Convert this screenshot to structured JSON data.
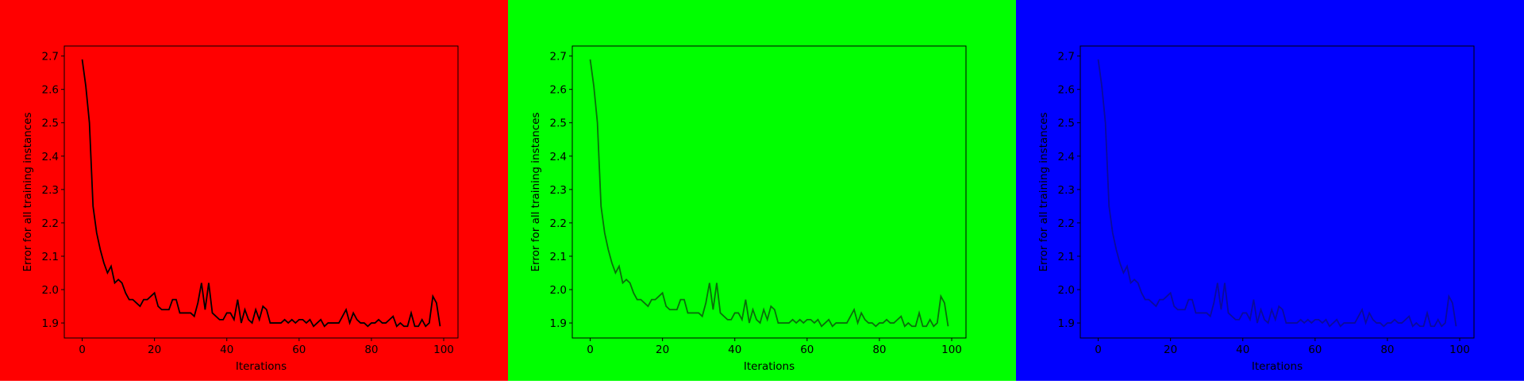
{
  "chart_data": [
    {
      "type": "line",
      "background": "#ff0000",
      "xlabel": "Iterations",
      "ylabel": "Error for all training instances",
      "x": [
        0,
        1,
        2,
        3,
        4,
        5,
        6,
        7,
        8,
        9,
        10,
        11,
        12,
        13,
        14,
        15,
        16,
        17,
        18,
        19,
        20,
        21,
        22,
        23,
        24,
        25,
        26,
        27,
        28,
        29,
        30,
        31,
        32,
        33,
        34,
        35,
        36,
        37,
        38,
        39,
        40,
        41,
        42,
        43,
        44,
        45,
        46,
        47,
        48,
        49,
        50,
        51,
        52,
        53,
        54,
        55,
        56,
        57,
        58,
        59,
        60,
        61,
        62,
        63,
        64,
        65,
        66,
        67,
        68,
        69,
        70,
        71,
        72,
        73,
        74,
        75,
        76,
        77,
        78,
        79,
        80,
        81,
        82,
        83,
        84,
        85,
        86,
        87,
        88,
        89,
        90,
        91,
        92,
        93,
        94,
        95,
        96,
        97,
        98,
        99
      ],
      "series": [
        {
          "color": "#000000",
          "values": [
            2.69,
            2.61,
            2.5,
            2.25,
            2.17,
            2.12,
            2.08,
            2.05,
            2.07,
            2.02,
            2.03,
            2.02,
            1.99,
            1.97,
            1.97,
            1.96,
            1.95,
            1.97,
            1.97,
            1.98,
            1.99,
            1.95,
            1.94,
            1.94,
            1.94,
            1.97,
            1.97,
            1.93,
            1.93,
            1.93,
            1.93,
            1.92,
            1.96,
            2.02,
            1.94,
            2.02,
            1.93,
            1.92,
            1.91,
            1.91,
            1.93,
            1.93,
            1.91,
            1.97,
            1.9,
            1.94,
            1.91,
            1.9,
            1.94,
            1.91,
            1.95,
            1.94,
            1.9,
            1.9,
            1.9,
            1.9,
            1.91,
            1.9,
            1.91,
            1.9,
            1.91,
            1.91,
            1.9,
            1.91,
            1.89,
            1.9,
            1.91,
            1.89,
            1.9,
            1.9,
            1.9,
            1.9,
            1.92,
            1.94,
            1.9,
            1.93,
            1.91,
            1.9,
            1.9,
            1.89,
            1.9,
            1.9,
            1.91,
            1.9,
            1.9,
            1.91,
            1.92,
            1.89,
            1.9,
            1.89,
            1.89,
            1.93,
            1.89,
            1.89,
            1.91,
            1.89,
            1.9,
            1.98,
            1.96,
            1.89
          ]
        }
      ],
      "xlim": [
        -4.95,
        103.95
      ],
      "ylim": [
        1.855,
        2.73
      ],
      "xticks": [
        0,
        20,
        40,
        60,
        80,
        100
      ],
      "yticks": [
        1.9,
        {
          "value": 2,
          "label": "2.0"
        },
        2.1,
        2.2,
        2.3,
        2.4,
        2.5,
        2.6,
        2.7
      ]
    },
    {
      "type": "line",
      "background": "#00ff00",
      "xlabel": "Iterations",
      "ylabel": "Error for all training instances",
      "x": [
        0,
        1,
        2,
        3,
        4,
        5,
        6,
        7,
        8,
        9,
        10,
        11,
        12,
        13,
        14,
        15,
        16,
        17,
        18,
        19,
        20,
        21,
        22,
        23,
        24,
        25,
        26,
        27,
        28,
        29,
        30,
        31,
        32,
        33,
        34,
        35,
        36,
        37,
        38,
        39,
        40,
        41,
        42,
        43,
        44,
        45,
        46,
        47,
        48,
        49,
        50,
        51,
        52,
        53,
        54,
        55,
        56,
        57,
        58,
        59,
        60,
        61,
        62,
        63,
        64,
        65,
        66,
        67,
        68,
        69,
        70,
        71,
        72,
        73,
        74,
        75,
        76,
        77,
        78,
        79,
        80,
        81,
        82,
        83,
        84,
        85,
        86,
        87,
        88,
        89,
        90,
        91,
        92,
        93,
        94,
        95,
        96,
        97,
        98,
        99
      ],
      "series": [
        {
          "color": "#0a6e0a",
          "values": [
            2.69,
            2.61,
            2.5,
            2.25,
            2.17,
            2.12,
            2.08,
            2.05,
            2.07,
            2.02,
            2.03,
            2.02,
            1.99,
            1.97,
            1.97,
            1.96,
            1.95,
            1.97,
            1.97,
            1.98,
            1.99,
            1.95,
            1.94,
            1.94,
            1.94,
            1.97,
            1.97,
            1.93,
            1.93,
            1.93,
            1.93,
            1.92,
            1.96,
            2.02,
            1.94,
            2.02,
            1.93,
            1.92,
            1.91,
            1.91,
            1.93,
            1.93,
            1.91,
            1.97,
            1.9,
            1.94,
            1.91,
            1.9,
            1.94,
            1.91,
            1.95,
            1.94,
            1.9,
            1.9,
            1.9,
            1.9,
            1.91,
            1.9,
            1.91,
            1.9,
            1.91,
            1.91,
            1.9,
            1.91,
            1.89,
            1.9,
            1.91,
            1.89,
            1.9,
            1.9,
            1.9,
            1.9,
            1.92,
            1.94,
            1.9,
            1.93,
            1.91,
            1.9,
            1.9,
            1.89,
            1.9,
            1.9,
            1.91,
            1.9,
            1.9,
            1.91,
            1.92,
            1.89,
            1.9,
            1.89,
            1.89,
            1.93,
            1.89,
            1.89,
            1.91,
            1.89,
            1.9,
            1.98,
            1.96,
            1.89
          ]
        }
      ],
      "xlim": [
        -4.95,
        103.95
      ],
      "ylim": [
        1.855,
        2.73
      ],
      "xticks": [
        0,
        20,
        40,
        60,
        80,
        100
      ],
      "yticks": [
        1.9,
        {
          "value": 2,
          "label": "2.0"
        },
        2.1,
        2.2,
        2.3,
        2.4,
        2.5,
        2.6,
        2.7
      ]
    },
    {
      "type": "line",
      "background": "#0000ff",
      "xlabel": "Iterations",
      "ylabel": "Error for all training instances",
      "x": [
        0,
        1,
        2,
        3,
        4,
        5,
        6,
        7,
        8,
        9,
        10,
        11,
        12,
        13,
        14,
        15,
        16,
        17,
        18,
        19,
        20,
        21,
        22,
        23,
        24,
        25,
        26,
        27,
        28,
        29,
        30,
        31,
        32,
        33,
        34,
        35,
        36,
        37,
        38,
        39,
        40,
        41,
        42,
        43,
        44,
        45,
        46,
        47,
        48,
        49,
        50,
        51,
        52,
        53,
        54,
        55,
        56,
        57,
        58,
        59,
        60,
        61,
        62,
        63,
        64,
        65,
        66,
        67,
        68,
        69,
        70,
        71,
        72,
        73,
        74,
        75,
        76,
        77,
        78,
        79,
        80,
        81,
        82,
        83,
        84,
        85,
        86,
        87,
        88,
        89,
        90,
        91,
        92,
        93,
        94,
        95,
        96,
        97,
        98,
        99
      ],
      "series": [
        {
          "color": "#0a0a9a",
          "values": [
            2.69,
            2.61,
            2.5,
            2.25,
            2.17,
            2.12,
            2.08,
            2.05,
            2.07,
            2.02,
            2.03,
            2.02,
            1.99,
            1.97,
            1.97,
            1.96,
            1.95,
            1.97,
            1.97,
            1.98,
            1.99,
            1.95,
            1.94,
            1.94,
            1.94,
            1.97,
            1.97,
            1.93,
            1.93,
            1.93,
            1.93,
            1.92,
            1.96,
            2.02,
            1.94,
            2.02,
            1.93,
            1.92,
            1.91,
            1.91,
            1.93,
            1.93,
            1.91,
            1.97,
            1.9,
            1.94,
            1.91,
            1.9,
            1.94,
            1.91,
            1.95,
            1.94,
            1.9,
            1.9,
            1.9,
            1.9,
            1.91,
            1.9,
            1.91,
            1.9,
            1.91,
            1.91,
            1.9,
            1.91,
            1.89,
            1.9,
            1.91,
            1.89,
            1.9,
            1.9,
            1.9,
            1.9,
            1.92,
            1.94,
            1.9,
            1.93,
            1.91,
            1.9,
            1.9,
            1.89,
            1.9,
            1.9,
            1.91,
            1.9,
            1.9,
            1.91,
            1.92,
            1.89,
            1.9,
            1.89,
            1.89,
            1.93,
            1.89,
            1.89,
            1.91,
            1.89,
            1.9,
            1.98,
            1.96,
            1.89
          ]
        }
      ],
      "xlim": [
        -4.95,
        103.95
      ],
      "ylim": [
        1.855,
        2.73
      ],
      "xticks": [
        0,
        20,
        40,
        60,
        80,
        100
      ],
      "yticks": [
        1.9,
        {
          "value": 2,
          "label": "2.0"
        },
        2.1,
        2.2,
        2.3,
        2.4,
        2.5,
        2.6,
        2.7
      ]
    }
  ]
}
